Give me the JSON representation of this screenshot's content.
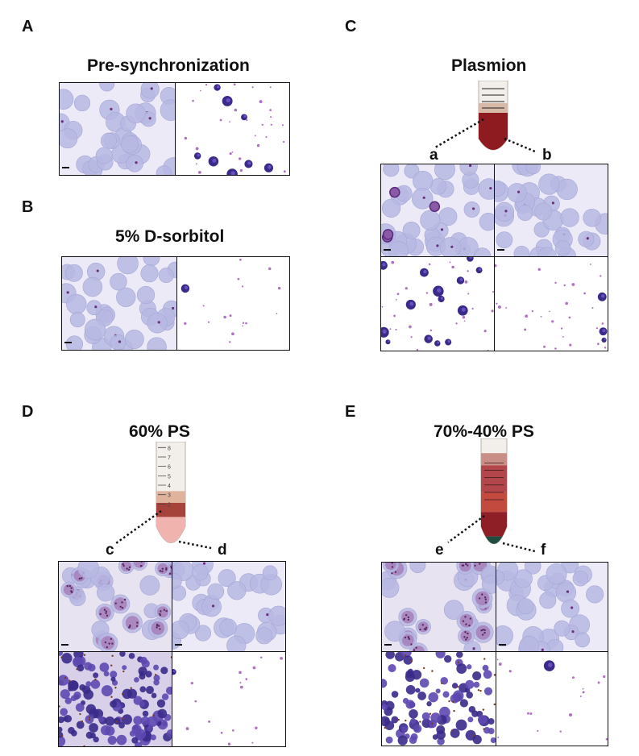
{
  "panels": {
    "A": {
      "letter": "A",
      "title": "Pre-synchronization"
    },
    "B": {
      "letter": "B",
      "title": "5% D-sorbitol"
    },
    "C": {
      "letter": "C",
      "title": "Plasmion",
      "left": "a",
      "right": "b"
    },
    "D": {
      "letter": "D",
      "title": "60%  PS",
      "left": "c",
      "right": "d"
    },
    "E": {
      "letter": "E",
      "title": "70%-40% PS",
      "left": "e",
      "right": "f"
    }
  },
  "tube_scale": [
    "8",
    "7",
    "6",
    "5",
    "4",
    "3",
    "2"
  ],
  "colors": {
    "rbc": "#b7b9e3",
    "parasite": "#3a2a8a",
    "stain": "#9b4fb0",
    "tube_red": "#8e1b1f"
  }
}
